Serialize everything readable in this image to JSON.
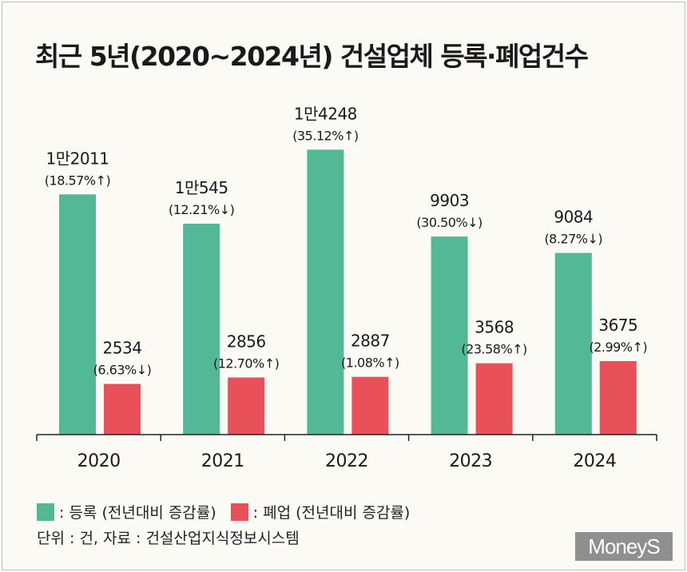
{
  "title": "최근 5년(2020~2024년) 건설업체 등록·폐업건수",
  "colors": {
    "registration": "#52b895",
    "closure": "#e9515a"
  },
  "legend": {
    "registration": ": 등록 (전년대비 증감률)",
    "closure": ": 폐업 (전년대비 증감률)"
  },
  "source": "단위 : 건, 자료 : 건설산업지식정보시스템",
  "logo": "MoneyS",
  "chart_data": {
    "type": "bar",
    "categories": [
      "2020",
      "2021",
      "2022",
      "2023",
      "2024"
    ],
    "series": [
      {
        "name": "등록",
        "values": [
          12011,
          10545,
          14248,
          9903,
          9084
        ],
        "labels": [
          "1만2011",
          "1만545",
          "1만4248",
          "9903",
          "9084"
        ],
        "changes": [
          "(18.57%↑)",
          "(12.21%↓)",
          "(35.12%↑)",
          "(30.50%↓)",
          "(8.27%↓)"
        ]
      },
      {
        "name": "폐업",
        "values": [
          2534,
          2856,
          2887,
          3568,
          3675
        ],
        "labels": [
          "2534",
          "2856",
          "2887",
          "3568",
          "3675"
        ],
        "changes": [
          "(6.63%↓)",
          "(12.70%↑)",
          "(1.08%↑)",
          "(23.58%↑)",
          "(2.99%↑)"
        ]
      }
    ],
    "ylim": [
      0,
      14700
    ]
  }
}
